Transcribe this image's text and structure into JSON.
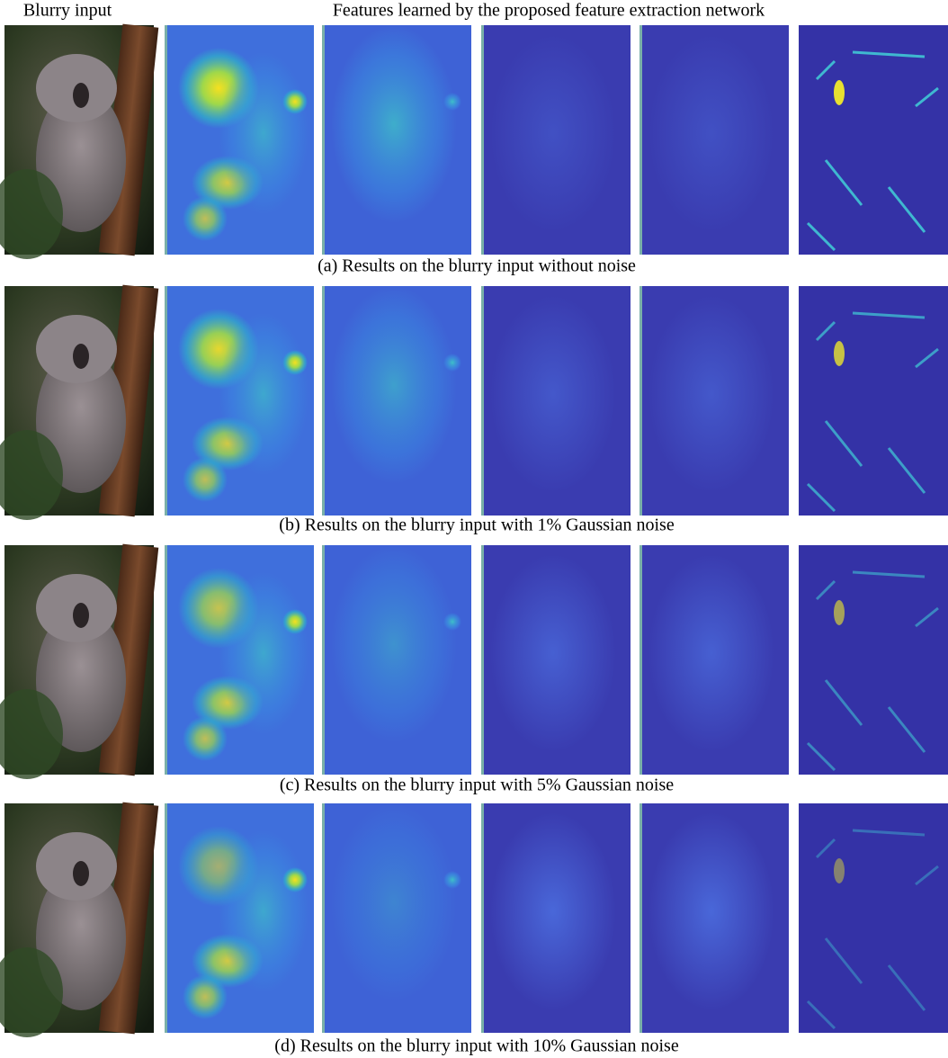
{
  "header": {
    "left_label": "Blurry input",
    "title": "Features learned by the proposed feature extraction network"
  },
  "rows": [
    {
      "caption": "(a) Results on the blurry input without noise"
    },
    {
      "caption": "(b) Results on the blurry input with 1% Gaussian noise"
    },
    {
      "caption": "(c) Results on the blurry input with 5% Gaussian noise"
    },
    {
      "caption": "(d) Results on the blurry input with 10% Gaussian noise"
    }
  ]
}
